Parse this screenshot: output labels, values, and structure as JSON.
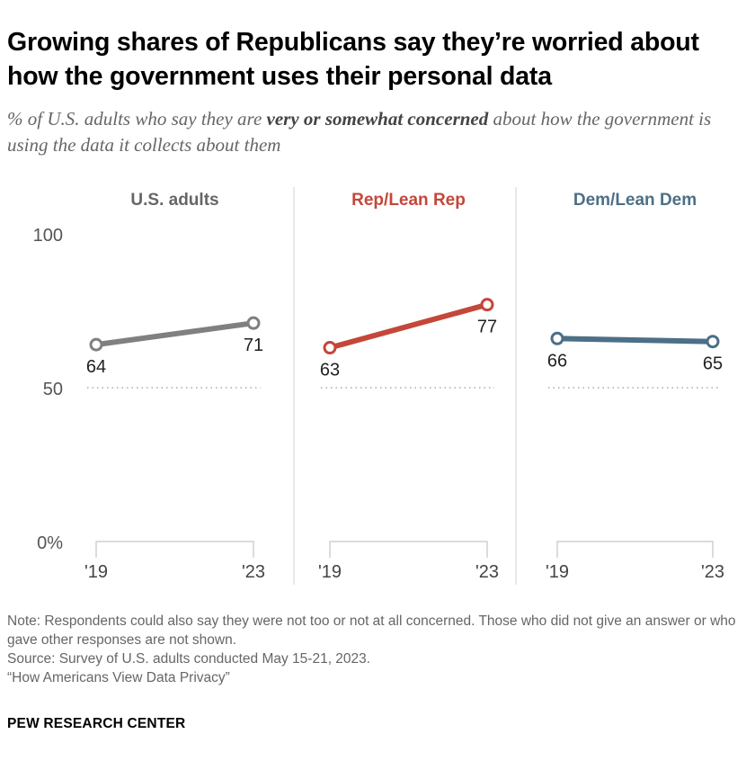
{
  "title": "Growing shares of Republicans say they’re worried about how the government uses their personal data",
  "subtitle": {
    "pre": "% of U.S. adults who say they are ",
    "bold": "very or somewhat concerned",
    "post": " about how the government is using the data it collects about them"
  },
  "chart_data": {
    "type": "line",
    "ylim": [
      0,
      100
    ],
    "y_ticks": [
      "100",
      "50",
      "0%"
    ],
    "y_tick_values": [
      100,
      50,
      0
    ],
    "reference_line": 50,
    "x": [
      "'19",
      "'23"
    ],
    "panels": [
      {
        "name": "U.S. adults",
        "color": "#808080",
        "values": [
          64,
          71
        ]
      },
      {
        "name": "Rep/Lean Rep",
        "color": "#c4473a",
        "values": [
          63,
          77
        ]
      },
      {
        "name": "Dem/Lean Dem",
        "color": "#4d6f87",
        "values": [
          66,
          65
        ]
      }
    ]
  },
  "notes": {
    "note": "Note: Respondents could also say they were not too or not at all concerned. Those who did not give an answer or who gave other responses are not shown.",
    "source": "Source: Survey of U.S. adults conducted May 15-21, 2023.",
    "report": "“How Americans View Data Privacy”"
  },
  "logo": "PEW RESEARCH CENTER"
}
